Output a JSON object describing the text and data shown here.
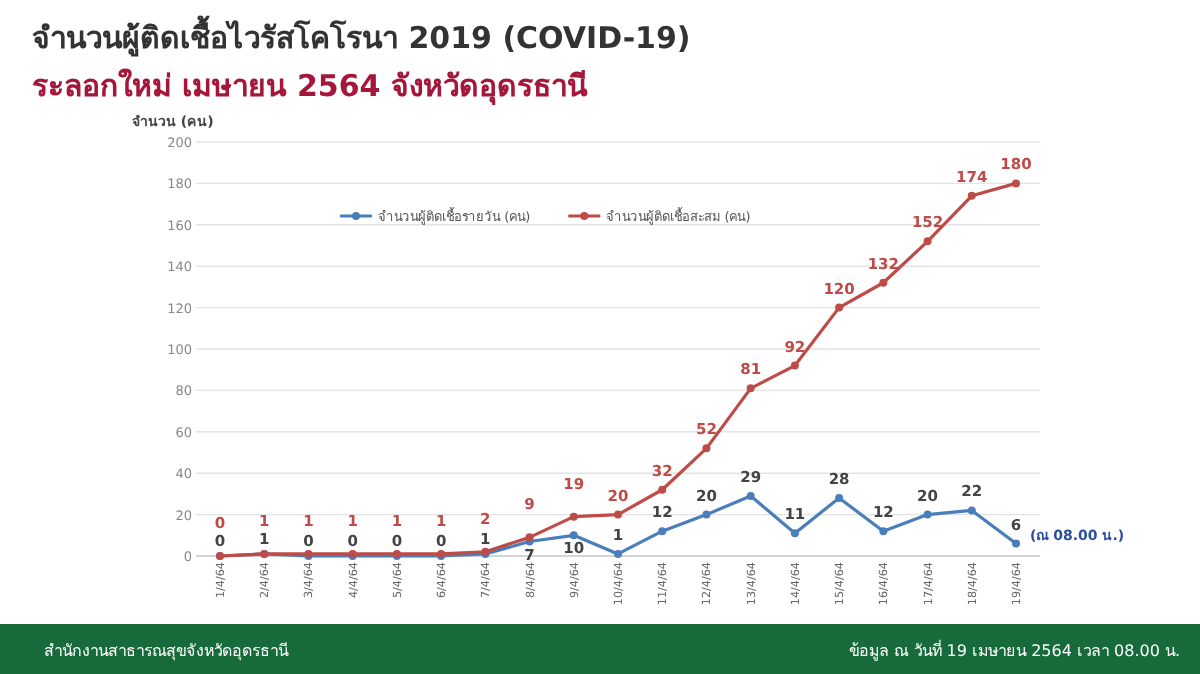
{
  "chart_data": {
    "type": "line",
    "title": "จำนวนผู้ติดเชื้อไวรัสโคโรนา 2019 (COVID-19)",
    "subtitle": "ระลอกใหม่ เมษายน 2564 จังหวัดอุดรธานี",
    "ylabel": "จำนวน (คน)",
    "categories": [
      "1/4/64",
      "2/4/64",
      "3/4/64",
      "4/4/64",
      "5/4/64",
      "6/4/64",
      "7/4/64",
      "8/4/64",
      "9/4/64",
      "10/4/64",
      "11/4/64",
      "12/4/64",
      "13/4/64",
      "14/4/64",
      "15/4/64",
      "16/4/64",
      "17/4/64",
      "18/4/64",
      "19/4/64"
    ],
    "series": [
      {
        "name": "จำนวนผู้ติดเชื้อรายวัน (คน)",
        "color": "#4a7ebb",
        "values": [
          0,
          1,
          0,
          0,
          0,
          0,
          1,
          7,
          10,
          1,
          12,
          20,
          29,
          11,
          28,
          12,
          20,
          22,
          6
        ]
      },
      {
        "name": "จำนวนผู้ติดเชื้อสะสม (คน)",
        "color": "#be4b48",
        "values": [
          0,
          1,
          1,
          1,
          1,
          1,
          2,
          9,
          19,
          20,
          32,
          52,
          81,
          92,
          120,
          132,
          152,
          174,
          180
        ]
      }
    ],
    "ylim": [
      0,
      200
    ],
    "yticks": [
      0,
      20,
      40,
      60,
      80,
      100,
      120,
      140,
      160,
      180,
      200
    ],
    "grid": "y",
    "legend": "top left",
    "marker": "circle",
    "line_style": "solid",
    "data_labels": true,
    "annotations": [
      {
        "text": "(ณ 08.00 น.)",
        "x": "19/4/64",
        "y": 6
      },
      "สำนักงานสาธารณสุขจังหวัดอุดรธานี",
      "ข้อมูล ณ วันที่ 19 เมษายน 2564 เวลา 08.00 น."
    ]
  }
}
